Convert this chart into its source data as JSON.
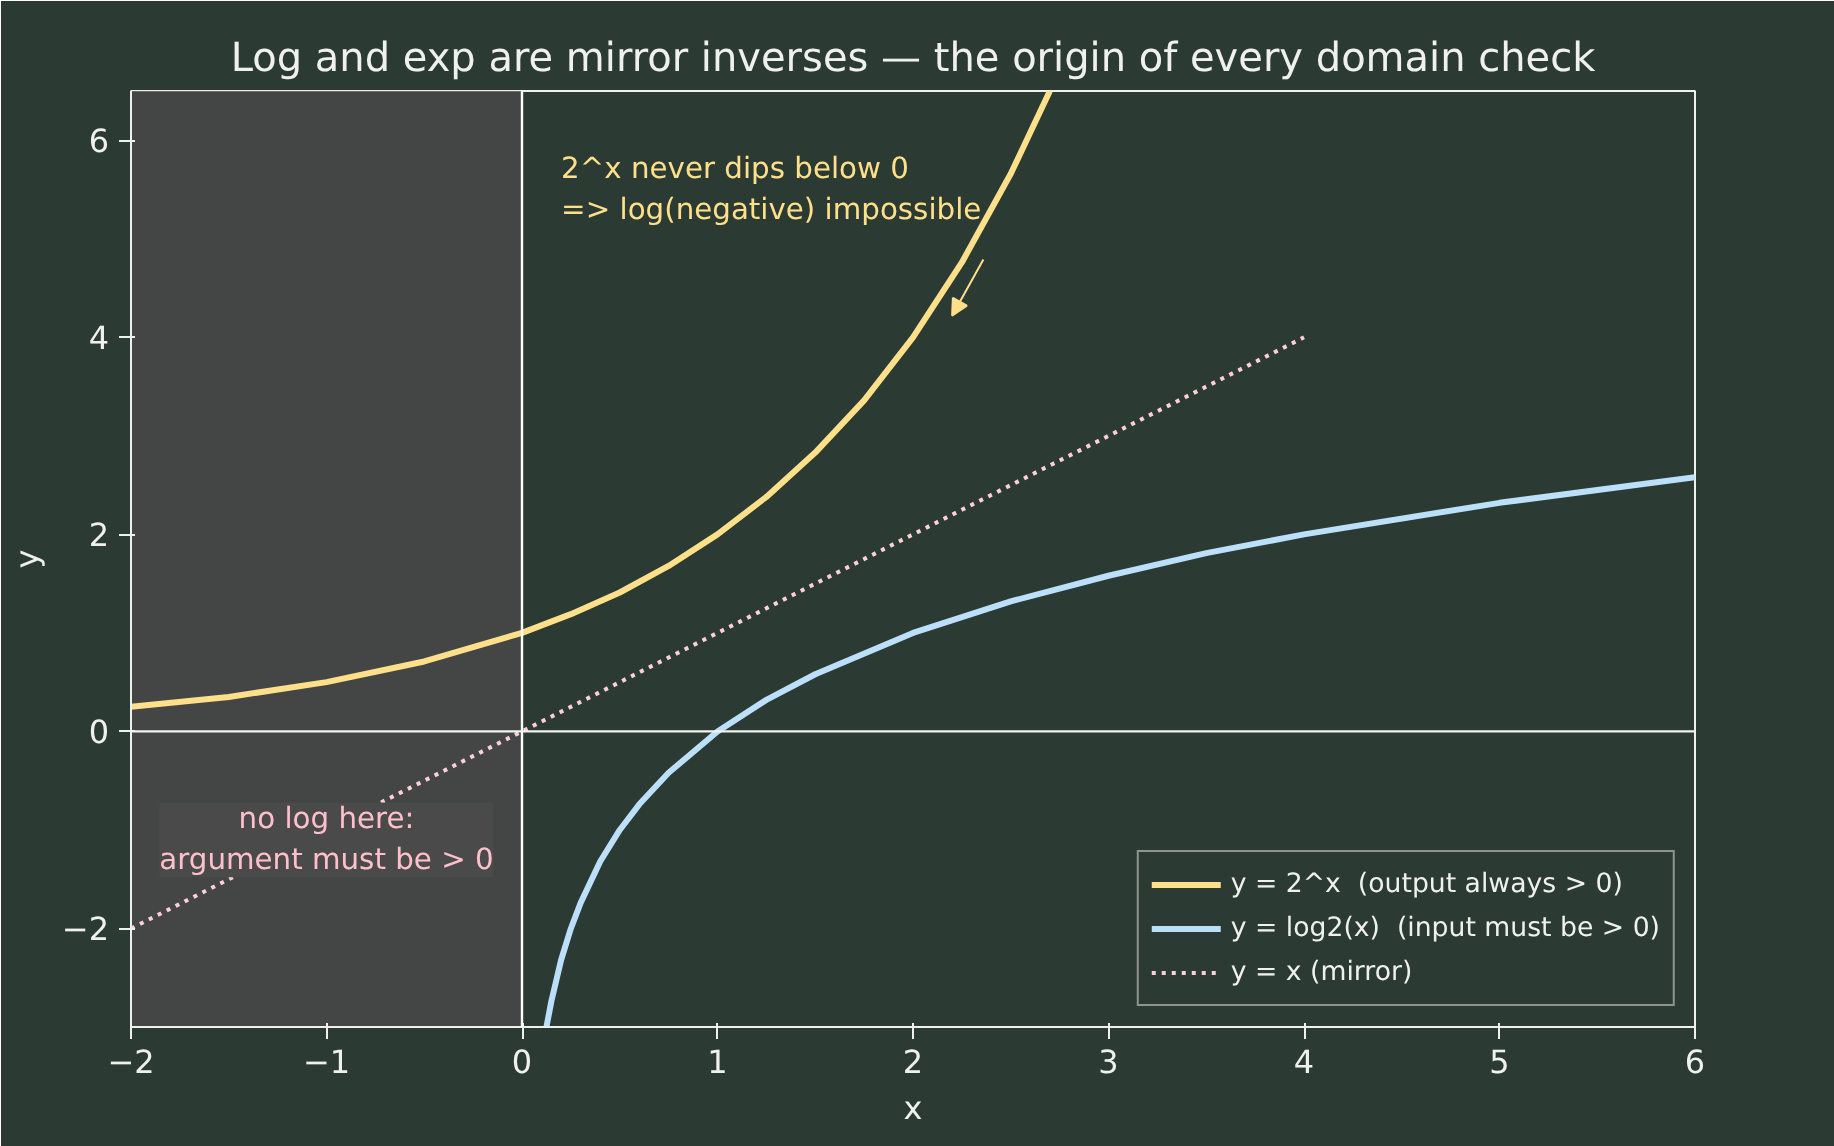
{
  "chart_data": {
    "type": "line",
    "title": "Log and exp are mirror inverses — the origin of every domain check",
    "xlabel": "x",
    "ylabel": "y",
    "xlim": [
      -2,
      6
    ],
    "ylim": [
      -3,
      6.5
    ],
    "xticks": [
      {
        "value": -2,
        "label": "−2"
      },
      {
        "value": -1,
        "label": "−1"
      },
      0,
      1,
      2,
      3,
      4,
      5,
      6
    ],
    "yticks": [
      {
        "value": -2,
        "label": "−2"
      },
      0,
      2,
      4,
      6
    ],
    "grid": false,
    "legend": "bottom right",
    "marker": "none",
    "series": [
      {
        "name": "y = 2^x  (output always > 0)",
        "color": "#ffe08a",
        "line_style": "solid",
        "x": [
          -2,
          -1.5,
          -1,
          -0.5,
          0,
          0.25,
          0.5,
          0.75,
          1,
          1.25,
          1.5,
          1.75,
          2,
          2.25,
          2.5,
          2.7
        ],
        "values": [
          0.25,
          0.35,
          0.5,
          0.71,
          1,
          1.19,
          1.41,
          1.68,
          2,
          2.38,
          2.83,
          3.36,
          4,
          4.76,
          5.66,
          6.5
        ]
      },
      {
        "name": "y = log2(x)  (input must be > 0)",
        "color": "#bde0fa",
        "line_style": "solid",
        "x": [
          0.125,
          0.15,
          0.2,
          0.25,
          0.3,
          0.4,
          0.5,
          0.6,
          0.75,
          1,
          1.25,
          1.5,
          2,
          2.5,
          3,
          3.5,
          4,
          5,
          6
        ],
        "values": [
          -3,
          -2.74,
          -2.32,
          -2,
          -1.74,
          -1.32,
          -1,
          -0.74,
          -0.42,
          0,
          0.32,
          0.58,
          1,
          1.32,
          1.58,
          1.81,
          2,
          2.32,
          2.58
        ]
      },
      {
        "name": "y = x (mirror)",
        "color": "#ffd0d8",
        "line_style": "dotted",
        "x": [
          -2,
          4
        ],
        "values": [
          -2,
          4
        ]
      }
    ],
    "ref_lines": [
      {
        "axis": "x",
        "value": 0,
        "color": "#ffffff"
      },
      {
        "axis": "y",
        "value": 0,
        "color": "#f2f2f2"
      }
    ],
    "bands": [
      {
        "axis": "x",
        "from": -2,
        "to": 0,
        "label": "no log here:\nargument must be > 0",
        "color": "#4a4a4a"
      }
    ],
    "annotations": [
      "2^x never dips below 0\n=> log(negative) impossible"
    ]
  }
}
